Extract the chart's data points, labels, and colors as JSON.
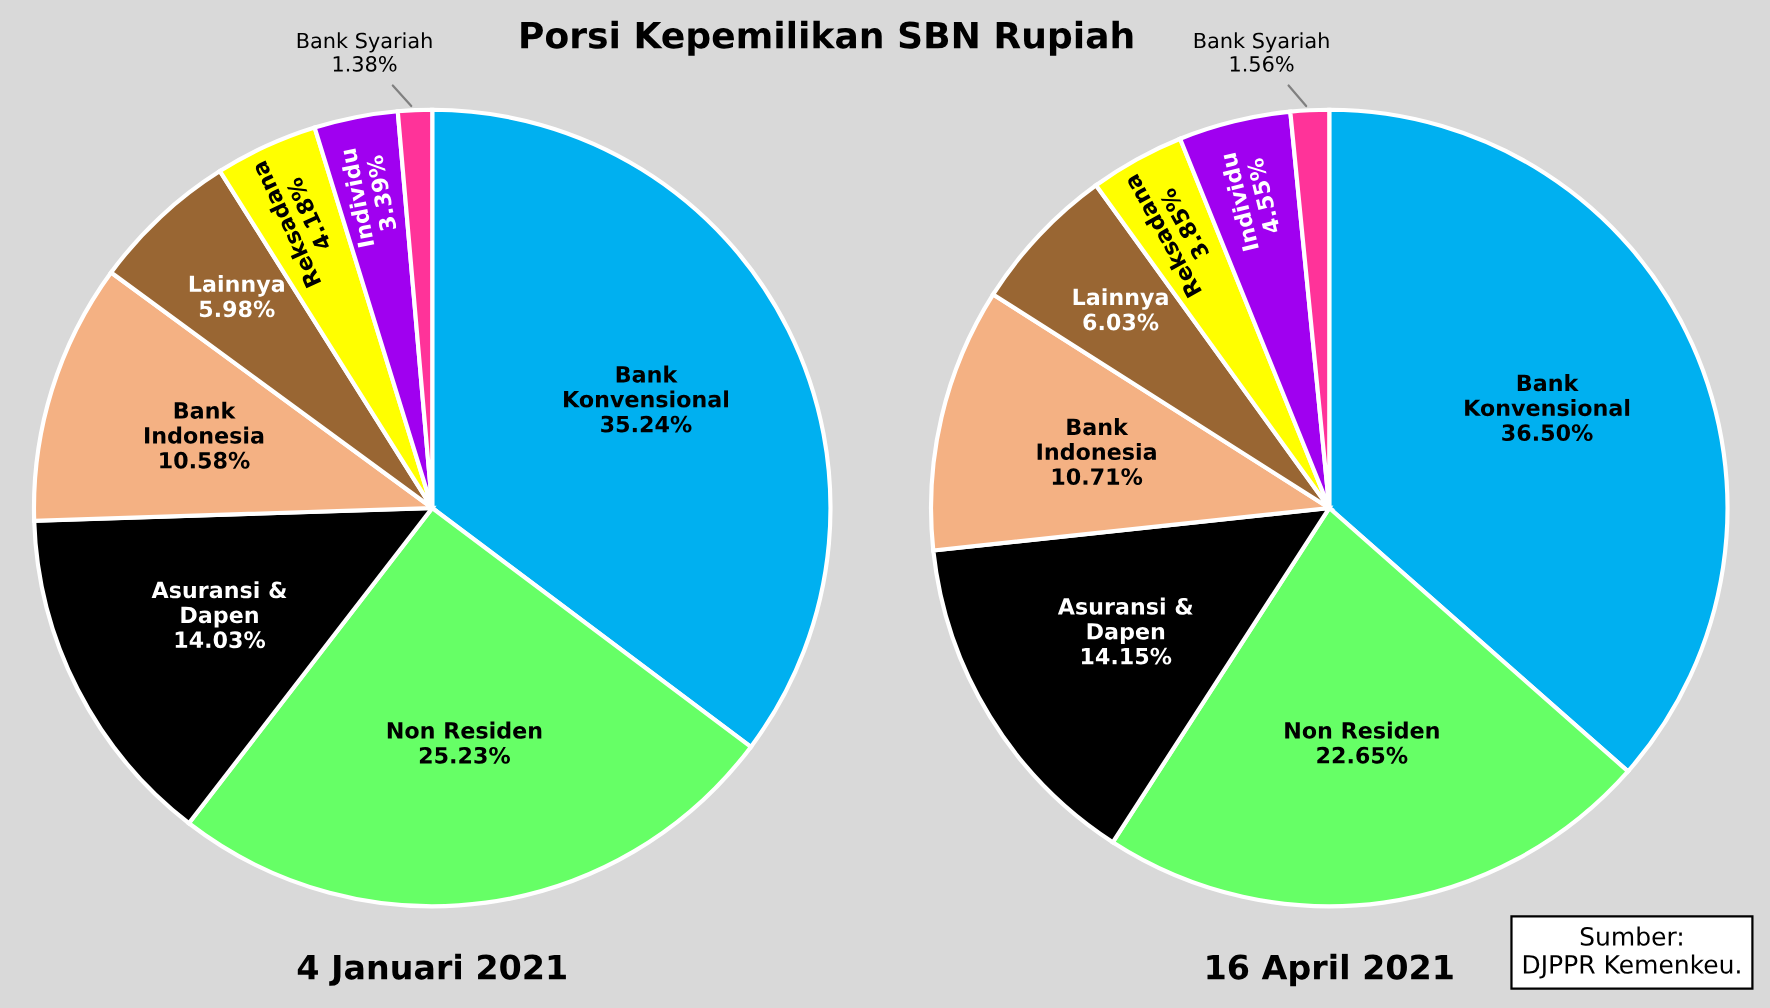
{
  "chart_data": [
    {
      "type": "pie",
      "title": "Porsi Kepemilikan SBN Rupiah",
      "xlabel": "4 Januari 2021",
      "legend": false,
      "value_labels": [
        "35.24%",
        "25.23%",
        "14.03%",
        "10.58%",
        "5.98%",
        "4.18%",
        "3.39%",
        "1.38%"
      ],
      "categories": [
        "Bank Konvensional",
        "Non Residen",
        "Asuransi & Dapen",
        "Bank Indonesia",
        "Lainnya",
        "Reksadana",
        "Individu",
        "Bank Syariah"
      ],
      "values": [
        35.24,
        25.23,
        14.03,
        10.58,
        5.98,
        4.18,
        3.39,
        1.38
      ],
      "colors": [
        "#00b0f0",
        "#66ff66",
        "#000000",
        "#f4b183",
        "#996633",
        "#ffff00",
        "#a000f0",
        "#ff3399"
      ]
    },
    {
      "type": "pie",
      "xlabel": "16 April 2021",
      "legend": false,
      "annotations": [
        "Sumber:\nDJPPR Kemenkeu."
      ],
      "value_labels": [
        "36.50%",
        "22.65%",
        "14.15%",
        "10.71%",
        "6.03%",
        "3.85%",
        "4.55%",
        "1.56%"
      ],
      "categories": [
        "Bank Konvensional",
        "Non Residen",
        "Asuransi & Dapen",
        "Bank Indonesia",
        "Lainnya",
        "Reksadana",
        "Individu",
        "Bank Syariah"
      ],
      "values": [
        36.5,
        22.65,
        14.15,
        10.71,
        6.03,
        3.85,
        4.55,
        1.56
      ],
      "colors": [
        "#00b0f0",
        "#66ff66",
        "#000000",
        "#f4b183",
        "#996633",
        "#ffff00",
        "#a000f0",
        "#ff3399"
      ]
    }
  ]
}
